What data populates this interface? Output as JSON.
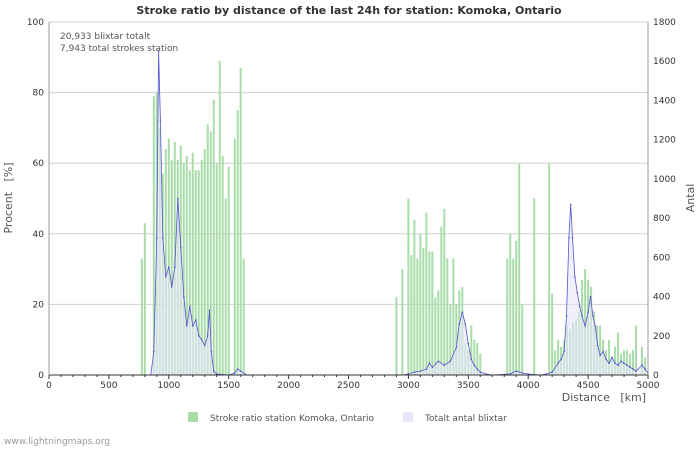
{
  "chart_data": {
    "type": "bar+area",
    "title": "Stroke ratio by distance of the last 24h for station: Komoka, Ontario",
    "xlabel": "Distance   [km]",
    "ylabel_left": "Procent   [%]",
    "ylabel_right": "Antal",
    "xlim": [
      0,
      5000
    ],
    "ylim_left": [
      0,
      100
    ],
    "ylim_right": [
      0,
      1800
    ],
    "x_ticks": [
      0,
      500,
      1000,
      1500,
      2000,
      2500,
      3000,
      3500,
      4000,
      4500,
      5000
    ],
    "y_ticks_left": [
      0,
      20,
      40,
      60,
      80,
      100
    ],
    "y_ticks_right": [
      0,
      200,
      400,
      600,
      800,
      1000,
      1200,
      1400,
      1600,
      1800
    ],
    "annotations": [
      "20,933 blixtar totalt",
      "7,943 total strokes station"
    ],
    "legend": [
      {
        "label": "Stroke ratio station Komoka, Ontario",
        "color": "#a8dca8"
      },
      {
        "label": "Totalt antal blixtar",
        "color": "#e6e6fa"
      }
    ],
    "series_ratio": {
      "name": "Stroke ratio station Komoka, Ontario",
      "unit": "%",
      "points": [
        [
          775,
          33
        ],
        [
          800,
          43
        ],
        [
          875,
          79
        ],
        [
          900,
          80
        ],
        [
          925,
          70
        ],
        [
          950,
          57
        ],
        [
          975,
          64
        ],
        [
          1000,
          67
        ],
        [
          1025,
          61
        ],
        [
          1050,
          66
        ],
        [
          1075,
          61
        ],
        [
          1100,
          65
        ],
        [
          1125,
          60
        ],
        [
          1150,
          62
        ],
        [
          1175,
          58
        ],
        [
          1200,
          63
        ],
        [
          1225,
          58
        ],
        [
          1250,
          58
        ],
        [
          1275,
          61
        ],
        [
          1300,
          64
        ],
        [
          1325,
          71
        ],
        [
          1350,
          69
        ],
        [
          1375,
          78
        ],
        [
          1400,
          60
        ],
        [
          1425,
          89
        ],
        [
          1450,
          62
        ],
        [
          1475,
          50
        ],
        [
          1500,
          59
        ],
        [
          1550,
          67
        ],
        [
          1575,
          75
        ],
        [
          1600,
          87
        ],
        [
          1625,
          33
        ],
        [
          2900,
          22
        ],
        [
          2950,
          30
        ],
        [
          3000,
          50
        ],
        [
          3025,
          34
        ],
        [
          3050,
          44
        ],
        [
          3075,
          33
        ],
        [
          3100,
          40
        ],
        [
          3125,
          36
        ],
        [
          3150,
          46
        ],
        [
          3175,
          35
        ],
        [
          3200,
          35
        ],
        [
          3225,
          22
        ],
        [
          3250,
          24
        ],
        [
          3275,
          42
        ],
        [
          3300,
          47
        ],
        [
          3325,
          33
        ],
        [
          3350,
          20
        ],
        [
          3375,
          33
        ],
        [
          3400,
          20
        ],
        [
          3425,
          24
        ],
        [
          3450,
          25
        ],
        [
          3475,
          9
        ],
        [
          3500,
          7
        ],
        [
          3525,
          14
        ],
        [
          3550,
          10
        ],
        [
          3575,
          9
        ],
        [
          3600,
          6
        ],
        [
          3825,
          33
        ],
        [
          3850,
          40
        ],
        [
          3875,
          33
        ],
        [
          3900,
          38
        ],
        [
          3925,
          60
        ],
        [
          3950,
          20
        ],
        [
          4050,
          50
        ],
        [
          4175,
          60
        ],
        [
          4200,
          23
        ],
        [
          4225,
          7
        ],
        [
          4250,
          10
        ],
        [
          4275,
          8
        ],
        [
          4300,
          10
        ],
        [
          4325,
          14
        ],
        [
          4350,
          13
        ],
        [
          4375,
          15
        ],
        [
          4400,
          16
        ],
        [
          4425,
          18
        ],
        [
          4450,
          27
        ],
        [
          4475,
          30
        ],
        [
          4500,
          27
        ],
        [
          4525,
          25
        ],
        [
          4550,
          18
        ],
        [
          4575,
          14
        ],
        [
          4600,
          14
        ],
        [
          4625,
          10
        ],
        [
          4650,
          7
        ],
        [
          4675,
          10
        ],
        [
          4700,
          5
        ],
        [
          4725,
          8
        ],
        [
          4750,
          12
        ],
        [
          4775,
          6
        ],
        [
          4800,
          7
        ],
        [
          4825,
          7
        ],
        [
          4850,
          6
        ],
        [
          4875,
          7
        ],
        [
          4900,
          14
        ],
        [
          4950,
          8
        ],
        [
          4975,
          5
        ]
      ]
    },
    "series_total": {
      "name": "Totalt antal blixtar",
      "unit": "count",
      "points": [
        [
          0,
          0
        ],
        [
          850,
          0
        ],
        [
          875,
          120
        ],
        [
          900,
          700
        ],
        [
          915,
          1650
        ],
        [
          930,
          1300
        ],
        [
          950,
          700
        ],
        [
          975,
          500
        ],
        [
          1000,
          550
        ],
        [
          1025,
          450
        ],
        [
          1050,
          550
        ],
        [
          1075,
          900
        ],
        [
          1100,
          650
        ],
        [
          1125,
          400
        ],
        [
          1150,
          250
        ],
        [
          1175,
          350
        ],
        [
          1200,
          250
        ],
        [
          1225,
          280
        ],
        [
          1250,
          200
        ],
        [
          1275,
          180
        ],
        [
          1300,
          150
        ],
        [
          1325,
          200
        ],
        [
          1340,
          330
        ],
        [
          1355,
          120
        ],
        [
          1375,
          20
        ],
        [
          1400,
          5
        ],
        [
          1500,
          0
        ],
        [
          1550,
          10
        ],
        [
          1575,
          30
        ],
        [
          1600,
          20
        ],
        [
          1650,
          0
        ],
        [
          2950,
          0
        ],
        [
          3000,
          5
        ],
        [
          3050,
          15
        ],
        [
          3100,
          20
        ],
        [
          3150,
          30
        ],
        [
          3175,
          60
        ],
        [
          3200,
          40
        ],
        [
          3250,
          70
        ],
        [
          3300,
          50
        ],
        [
          3350,
          70
        ],
        [
          3400,
          140
        ],
        [
          3425,
          260
        ],
        [
          3450,
          320
        ],
        [
          3475,
          260
        ],
        [
          3500,
          160
        ],
        [
          3525,
          80
        ],
        [
          3550,
          50
        ],
        [
          3575,
          30
        ],
        [
          3600,
          15
        ],
        [
          3650,
          5
        ],
        [
          3700,
          0
        ],
        [
          3850,
          5
        ],
        [
          3900,
          20
        ],
        [
          3950,
          10
        ],
        [
          4000,
          5
        ],
        [
          4100,
          0
        ],
        [
          4150,
          5
        ],
        [
          4200,
          15
        ],
        [
          4250,
          60
        ],
        [
          4275,
          80
        ],
        [
          4300,
          120
        ],
        [
          4320,
          300
        ],
        [
          4340,
          700
        ],
        [
          4355,
          870
        ],
        [
          4370,
          700
        ],
        [
          4390,
          500
        ],
        [
          4410,
          420
        ],
        [
          4430,
          350
        ],
        [
          4450,
          300
        ],
        [
          4475,
          250
        ],
        [
          4500,
          320
        ],
        [
          4520,
          400
        ],
        [
          4540,
          300
        ],
        [
          4560,
          250
        ],
        [
          4580,
          150
        ],
        [
          4600,
          100
        ],
        [
          4625,
          120
        ],
        [
          4650,
          80
        ],
        [
          4675,
          60
        ],
        [
          4700,
          90
        ],
        [
          4725,
          60
        ],
        [
          4750,
          50
        ],
        [
          4775,
          70
        ],
        [
          4800,
          60
        ],
        [
          4825,
          50
        ],
        [
          4850,
          40
        ],
        [
          4875,
          30
        ],
        [
          4900,
          20
        ],
        [
          4950,
          50
        ],
        [
          4975,
          30
        ],
        [
          5000,
          10
        ]
      ]
    }
  },
  "footer": "www.lightningmaps.org"
}
